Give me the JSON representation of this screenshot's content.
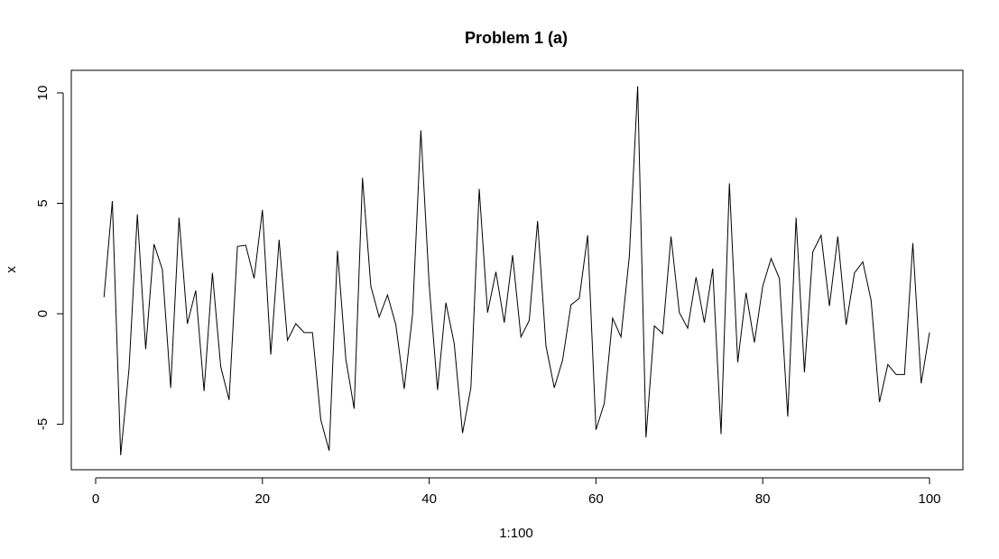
{
  "chart_data": {
    "type": "line",
    "title": "Problem 1 (a)",
    "xlabel": "1:100",
    "ylabel": "x",
    "xlim": [
      1,
      100
    ],
    "ylim": [
      -6.5,
      10.5
    ],
    "xticks": [
      0,
      20,
      40,
      60,
      80,
      100
    ],
    "yticks": [
      -5,
      0,
      5,
      10
    ],
    "xtick_labels": [
      "0",
      "20",
      "40",
      "60",
      "80",
      "100"
    ],
    "ytick_labels": [
      "-5",
      "0",
      "5",
      "10"
    ],
    "grid": false,
    "line_color": "#000000",
    "x": [
      1,
      2,
      3,
      4,
      5,
      6,
      7,
      8,
      9,
      10,
      11,
      12,
      13,
      14,
      15,
      16,
      17,
      18,
      19,
      20,
      21,
      22,
      23,
      24,
      25,
      26,
      27,
      28,
      29,
      30,
      31,
      32,
      33,
      34,
      35,
      36,
      37,
      38,
      39,
      40,
      41,
      42,
      43,
      44,
      45,
      46,
      47,
      48,
      49,
      50,
      51,
      52,
      53,
      54,
      55,
      56,
      57,
      58,
      59,
      60,
      61,
      62,
      63,
      64,
      65,
      66,
      67,
      68,
      69,
      70,
      71,
      72,
      73,
      74,
      75,
      76,
      77,
      78,
      79,
      80,
      81,
      82,
      83,
      84,
      85,
      86,
      87,
      88,
      89,
      90,
      91,
      92,
      93,
      94,
      95,
      96,
      97,
      98,
      99,
      100
    ],
    "y": [
      0.75,
      5.1,
      -6.4,
      -2.5,
      4.5,
      -1.6,
      3.15,
      2.0,
      -3.35,
      4.35,
      -0.45,
      1.05,
      -3.5,
      1.85,
      -2.4,
      -3.9,
      3.05,
      3.1,
      1.6,
      4.7,
      -1.85,
      3.35,
      -1.2,
      -0.45,
      -0.85,
      -0.85,
      -4.8,
      -6.2,
      2.85,
      -2.05,
      -4.3,
      6.15,
      1.25,
      -0.15,
      0.85,
      -0.5,
      -3.4,
      -0.05,
      8.3,
      1.3,
      -3.45,
      0.5,
      -1.35,
      -5.4,
      -3.35,
      5.65,
      0.05,
      1.9,
      -0.4,
      2.65,
      -1.05,
      -0.3,
      4.2,
      -1.45,
      -3.35,
      -2.1,
      0.4,
      0.7,
      3.55,
      -5.25,
      -4.05,
      -0.2,
      -1.05,
      2.6,
      10.3,
      -5.6,
      -0.55,
      -0.9,
      3.5,
      0.05,
      -0.65,
      1.65,
      -0.4,
      2.05,
      -5.45,
      5.9,
      -2.2,
      0.95,
      -1.3,
      1.25,
      2.5,
      1.6,
      -4.65,
      4.35,
      -2.65,
      2.8,
      3.55,
      0.35,
      3.5,
      -0.5,
      1.85,
      2.35,
      0.6,
      -4.0,
      -2.3,
      -2.75,
      -2.75,
      3.2,
      -3.15,
      -0.85
    ]
  }
}
